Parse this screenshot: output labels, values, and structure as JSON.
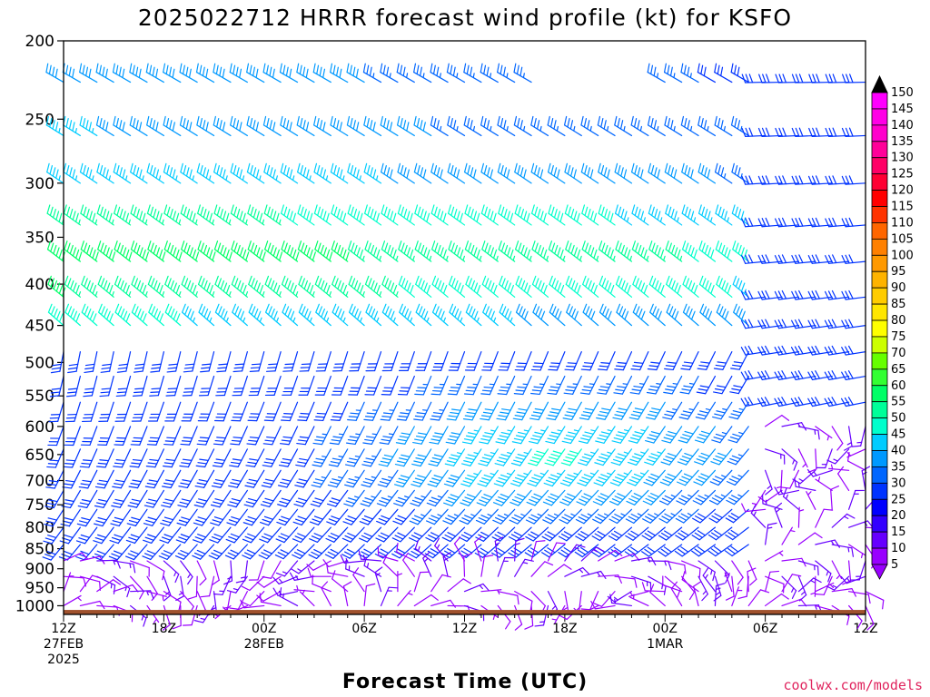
{
  "chart_data": {
    "type": "wind-barb time-height profile",
    "title": "2025022712 HRRR forecast wind profile (kt) for KSFO",
    "xlabel": "Forecast Time (UTC)",
    "ylabel": "",
    "units": "kt",
    "y_axis": {
      "quantity": "pressure (hPa)",
      "scale": "log",
      "range": [
        1025,
        200
      ],
      "ticks": [
        200,
        250,
        300,
        350,
        400,
        450,
        500,
        550,
        600,
        650,
        700,
        750,
        800,
        850,
        900,
        950,
        1000
      ]
    },
    "x_axis": {
      "range": [
        "2025-02-27 12Z",
        "2025-03-01 12Z"
      ],
      "step_hours": 1,
      "ticks": [
        {
          "label": "12Z",
          "sub": "27FEB",
          "sub2": "2025"
        },
        {
          "label": "18Z",
          "sub": "",
          "sub2": ""
        },
        {
          "label": "00Z",
          "sub": "28FEB",
          "sub2": ""
        },
        {
          "label": "06Z",
          "sub": "",
          "sub2": ""
        },
        {
          "label": "12Z",
          "sub": "",
          "sub2": ""
        },
        {
          "label": "18Z",
          "sub": "",
          "sub2": ""
        },
        {
          "label": "00Z",
          "sub": "1MAR",
          "sub2": ""
        },
        {
          "label": "06Z",
          "sub": "",
          "sub2": ""
        },
        {
          "label": "12Z",
          "sub": "",
          "sub2": ""
        }
      ]
    },
    "barb_levels": [
      225,
      262,
      300,
      338,
      375,
      415,
      450,
      485,
      520,
      560,
      600,
      640,
      680,
      720,
      760,
      800,
      840,
      880,
      920,
      960,
      1000
    ],
    "wind_regimes": [
      {
        "period": "27FEB 12Z - 28FEB 06Z",
        "levels": "225-450 hPa",
        "direction": "WNW-NW",
        "speed_kt": "40-65"
      },
      {
        "period": "27FEB 12Z - 28FEB 12Z",
        "levels": "500-900 hPa",
        "direction": "S-SW",
        "speed_kt": "25-50"
      },
      {
        "period": "28FEB 06Z - 28FEB 12Z",
        "levels": "600-700 hPa",
        "direction": "SW",
        "speed_kt": "45-50"
      },
      {
        "period": "28FEB 12Z - 1MAR 12Z",
        "levels": "250-550 hPa",
        "direction": "W",
        "speed_kt": "25-35"
      },
      {
        "period": "28FEB 18Z - 1MAR 12Z",
        "levels": "600-950 hPa",
        "direction": "variable",
        "speed_kt": "5-20"
      },
      {
        "period": "27FEB 12Z - 1MAR 12Z",
        "levels": "1000 hPa",
        "direction": "variable",
        "speed_kt": "5-15"
      }
    ],
    "colorbar": {
      "ticks": [
        150,
        145,
        140,
        135,
        130,
        125,
        120,
        115,
        110,
        105,
        100,
        95,
        90,
        85,
        80,
        75,
        70,
        65,
        60,
        55,
        50,
        45,
        40,
        35,
        30,
        25,
        20,
        15,
        10,
        5
      ],
      "colors": [
        "#ff00ff",
        "#ff00e6",
        "#ff00cc",
        "#ff0099",
        "#ff0066",
        "#ff0033",
        "#ff0000",
        "#ff3300",
        "#ff6600",
        "#ff8000",
        "#ff9900",
        "#ffb300",
        "#ffcc00",
        "#ffe600",
        "#ffff00",
        "#ccff00",
        "#66ff00",
        "#33ff33",
        "#00ff66",
        "#00ff99",
        "#00ffcc",
        "#00ccff",
        "#0099ff",
        "#0066ff",
        "#0033ff",
        "#0000ff",
        "#3300ff",
        "#6600ff",
        "#9900ff",
        "#9900ff"
      ]
    },
    "ground_color": "#a0522d"
  },
  "credit": "coolwx.com/models"
}
